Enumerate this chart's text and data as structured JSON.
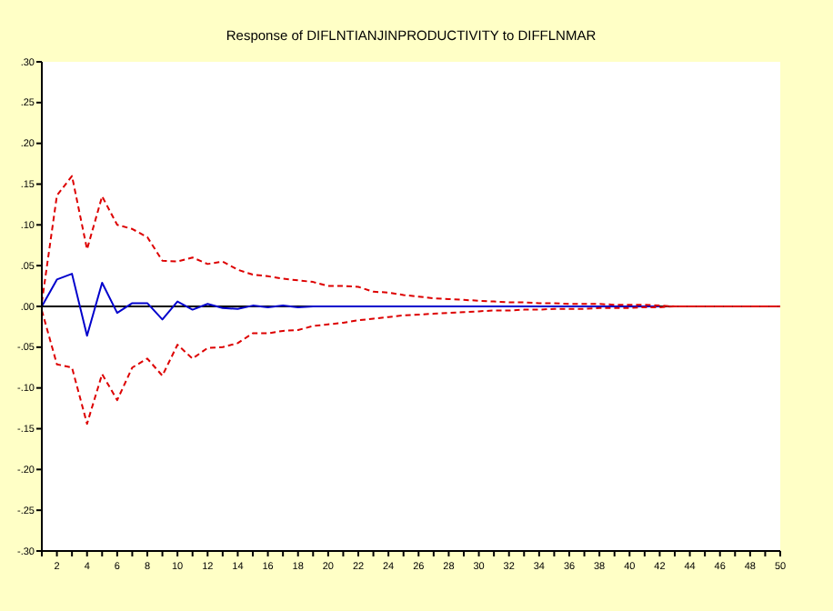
{
  "chart_data": {
    "type": "line",
    "title": "Response of DIFLNTIANJINPRODUCTIVITY to DIFFLNMAR",
    "x": [
      1,
      2,
      3,
      4,
      5,
      6,
      7,
      8,
      9,
      10,
      11,
      12,
      13,
      14,
      15,
      16,
      17,
      18,
      19,
      20,
      21,
      22,
      23,
      24,
      25,
      26,
      27,
      28,
      29,
      30,
      31,
      32,
      33,
      34,
      35,
      36,
      37,
      38,
      39,
      40,
      41,
      42,
      43,
      44,
      45,
      46,
      47,
      48,
      49,
      50
    ],
    "series": [
      {
        "color": "#0000cc",
        "line_style": "solid",
        "values": [
          0,
          0.033,
          0.04,
          -0.036,
          0.029,
          -0.008,
          0.004,
          0.004,
          -0.016,
          0.006,
          -0.004,
          0.003,
          -0.002,
          -0.003,
          0.001,
          -0.001,
          0.001,
          -0.001,
          0,
          0,
          0,
          0,
          0,
          0,
          0,
          0,
          0,
          0,
          0,
          0,
          0,
          0,
          0,
          0,
          0,
          0,
          0,
          0,
          0,
          0,
          0,
          0,
          null,
          null,
          null,
          null,
          null,
          null,
          null,
          null
        ]
      },
      {
        "color": "#dd0000",
        "line_style": "dashed",
        "values": [
          0.005,
          0.136,
          0.16,
          0.07,
          0.135,
          0.1,
          0.095,
          0.085,
          0.056,
          0.055,
          0.06,
          0.052,
          0.055,
          0.045,
          0.039,
          0.037,
          0.034,
          0.032,
          0.03,
          0.025,
          0.025,
          0.024,
          0.018,
          0.017,
          0.014,
          0.012,
          0.01,
          0.009,
          0.008,
          0.007,
          0.006,
          0.005,
          0.005,
          0.004,
          0.004,
          0.003,
          0.003,
          0.003,
          0.002,
          0.002,
          0.002,
          0.001,
          0,
          0,
          0,
          0,
          0,
          0,
          0,
          0
        ]
      },
      {
        "color": "#dd0000",
        "line_style": "dashed",
        "values": [
          -0.005,
          -0.071,
          -0.075,
          -0.144,
          -0.083,
          -0.115,
          -0.075,
          -0.064,
          -0.085,
          -0.047,
          -0.064,
          -0.051,
          -0.05,
          -0.045,
          -0.033,
          -0.033,
          -0.03,
          -0.029,
          -0.024,
          -0.022,
          -0.02,
          -0.017,
          -0.015,
          -0.013,
          -0.011,
          -0.01,
          -0.009,
          -0.008,
          -0.007,
          -0.006,
          -0.005,
          -0.005,
          -0.004,
          -0.004,
          -0.003,
          -0.003,
          -0.003,
          -0.002,
          -0.002,
          -0.002,
          -0.001,
          -0.001,
          0,
          0,
          0,
          0,
          0,
          0,
          0,
          0
        ]
      }
    ],
    "xlim": [
      1,
      50
    ],
    "xticks": [
      {
        "value": 1,
        "label": null
      },
      2,
      {
        "value": 3,
        "label": null
      },
      4,
      {
        "value": 5,
        "label": null
      },
      6,
      {
        "value": 7,
        "label": null
      },
      8,
      {
        "value": 9,
        "label": null
      },
      10,
      {
        "value": 11,
        "label": null
      },
      12,
      {
        "value": 13,
        "label": null
      },
      14,
      {
        "value": 15,
        "label": null
      },
      16,
      {
        "value": 17,
        "label": null
      },
      18,
      {
        "value": 19,
        "label": null
      },
      20,
      {
        "value": 21,
        "label": null
      },
      22,
      {
        "value": 23,
        "label": null
      },
      24,
      {
        "value": 25,
        "label": null
      },
      26,
      {
        "value": 27,
        "label": null
      },
      28,
      {
        "value": 29,
        "label": null
      },
      30,
      {
        "value": 31,
        "label": null
      },
      32,
      {
        "value": 33,
        "label": null
      },
      34,
      {
        "value": 35,
        "label": null
      },
      36,
      {
        "value": 37,
        "label": null
      },
      38,
      {
        "value": 39,
        "label": null
      },
      40,
      {
        "value": 41,
        "label": null
      },
      42,
      {
        "value": 43,
        "label": null
      },
      44,
      {
        "value": 45,
        "label": null
      },
      46,
      {
        "value": 47,
        "label": null
      },
      48,
      {
        "value": 49,
        "label": null
      },
      50
    ],
    "ylim": [
      -0.3,
      0.3
    ],
    "yticks": [
      {
        "value": -0.3,
        "label": "-.30"
      },
      {
        "value": -0.25,
        "label": "-.25"
      },
      {
        "value": -0.2,
        "label": "-.20"
      },
      {
        "value": -0.15,
        "label": "-.15"
      },
      {
        "value": -0.1,
        "label": "-.10"
      },
      {
        "value": -0.05,
        "label": "-.05"
      },
      {
        "value": 0,
        "label": ".00"
      },
      {
        "value": 0.05,
        "label": ".05"
      },
      {
        "value": 0.1,
        "label": ".10"
      },
      {
        "value": 0.15,
        "label": ".15"
      },
      {
        "value": 0.2,
        "label": ".20"
      },
      {
        "value": 0.25,
        "label": ".25"
      },
      {
        "value": 0.3,
        "label": ".30"
      }
    ],
    "ref_lines": [
      {
        "axis": "y",
        "value": 0,
        "color": "#000000"
      }
    ],
    "grid": false
  }
}
